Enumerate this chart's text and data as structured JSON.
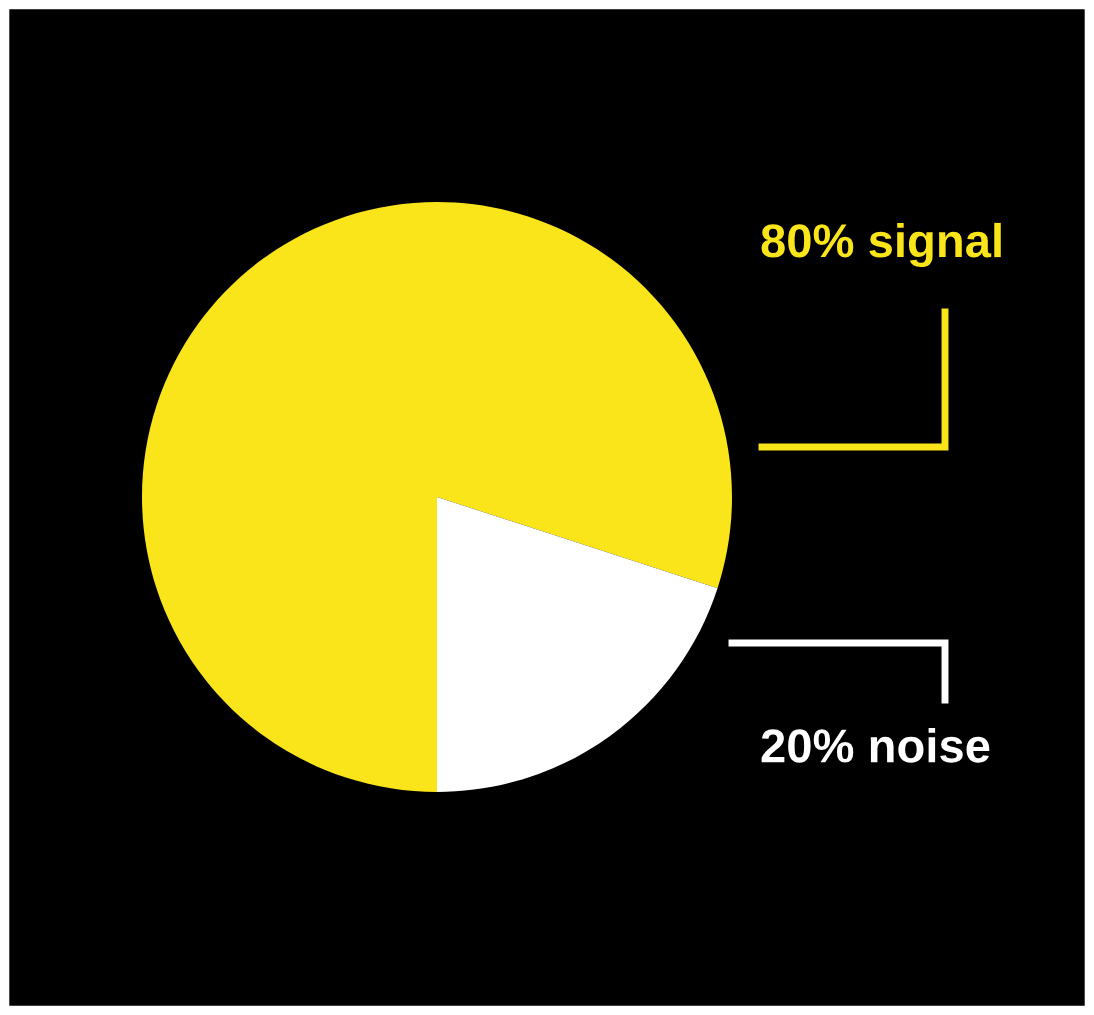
{
  "chart_data": {
    "type": "pie",
    "categories": [
      "signal",
      "noise"
    ],
    "values": [
      80,
      20
    ],
    "colors": [
      "#fae41a",
      "#ffffff"
    ],
    "value_labels": [
      "80%",
      "20%"
    ]
  }
}
